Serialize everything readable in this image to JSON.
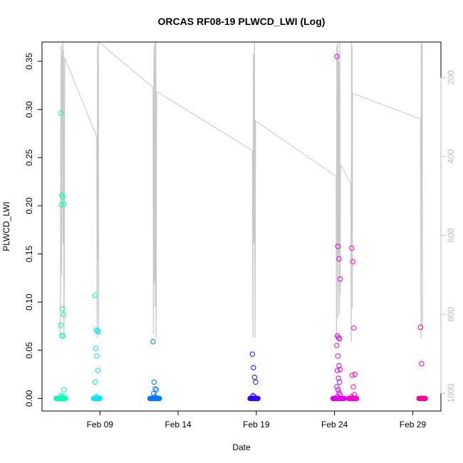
{
  "chart_data": {
    "type": "scatter",
    "title": "ORCAS RF08-19 PLWCD_LWI (Log)",
    "xlabel": "Date",
    "ylabel": "PLWCD_LWI",
    "x_unit": "day of February 2016",
    "xlim": [
      5.3,
      30.8
    ],
    "ylim": [
      -0.013,
      0.37
    ],
    "x_ticks": [
      {
        "value": 9,
        "label": "Feb 09"
      },
      {
        "value": 14,
        "label": "Feb 14"
      },
      {
        "value": 19,
        "label": "Feb 19"
      },
      {
        "value": 24,
        "label": "Feb 24"
      },
      {
        "value": 29,
        "label": "Feb 29"
      }
    ],
    "y_ticks": [
      {
        "value": 0.0,
        "label": "0.00"
      },
      {
        "value": 0.05,
        "label": "0.05"
      },
      {
        "value": 0.1,
        "label": "0.10"
      },
      {
        "value": 0.15,
        "label": "0.15"
      },
      {
        "value": 0.2,
        "label": "0.20"
      },
      {
        "value": 0.25,
        "label": "0.25"
      },
      {
        "value": 0.3,
        "label": "0.30"
      },
      {
        "value": 0.35,
        "label": "0.35"
      }
    ],
    "right_axis": {
      "ylim": [
        1045,
        110
      ],
      "ticks": [
        {
          "value": 200,
          "label": "200"
        },
        {
          "value": 400,
          "label": "400"
        },
        {
          "value": 600,
          "label": "600"
        },
        {
          "value": 800,
          "label": "800"
        },
        {
          "value": 1000,
          "label": "1000"
        }
      ],
      "color": "#bbbbbb"
    },
    "grid": false,
    "legend": "none",
    "pressure_trace": {
      "color": "#c8c8c8",
      "flights": [
        {
          "x0": 6.45,
          "x1": 6.75,
          "seq": [
            835,
            850,
            300,
            120,
            700,
            145,
            250,
            100,
            620,
            130,
            860,
            690,
            150
          ]
        },
        {
          "x0": 8.8,
          "x1": 8.92,
          "seq": [
            350,
            860,
            120,
            660,
            100,
            845
          ]
        },
        {
          "x0": 12.4,
          "x1": 12.62,
          "seq": [
            225,
            850,
            120,
            720,
            690,
            100,
            780,
            105,
            860,
            235
          ]
        },
        {
          "x0": 18.75,
          "x1": 18.95,
          "seq": [
            385,
            860,
            140,
            620,
            100,
            860,
            310
          ]
        },
        {
          "x0": 24.1,
          "x1": 24.38,
          "seq": [
            450,
            860,
            120,
            670,
            100,
            810,
            140,
            650,
            160,
            800,
            110,
            750,
            420
          ]
        },
        {
          "x0": 25.05,
          "x1": 25.15,
          "seq": [
            470,
            870,
            110,
            210,
            120,
            785,
            240
          ]
        },
        {
          "x0": 29.5,
          "x1": 29.62,
          "seq": [
            305,
            860,
            110,
            450,
            115,
            840
          ]
        }
      ],
      "ferry_lines": [
        [
          6.75,
          150,
          8.8,
          350
        ],
        [
          8.92,
          110,
          12.4,
          225
        ],
        [
          12.62,
          235,
          18.75,
          385
        ],
        [
          18.95,
          310,
          24.1,
          450
        ],
        [
          24.38,
          420,
          25.05,
          470
        ],
        [
          25.15,
          240,
          29.5,
          305
        ]
      ]
    },
    "series": [
      {
        "color": "#00ffbb",
        "x": 6.6,
        "y_zero_range": [
          6.2,
          6.8
        ],
        "y": [
          0.296,
          0.211,
          0.209,
          0.202,
          0.201,
          0.093,
          0.087,
          0.076,
          0.065,
          0.065,
          0.009,
          0.003,
          0.002,
          0.001
        ]
      },
      {
        "color": "#00e8ff",
        "x": 8.8,
        "y_zero_range": [
          8.6,
          9.0
        ],
        "y": [
          0.107,
          0.071,
          0.07,
          0.069,
          0.052,
          0.044,
          0.029,
          0.017,
          0.002,
          0.001
        ]
      },
      {
        "color": "#0077ff",
        "x": 12.5,
        "y_zero_range": [
          12.2,
          12.8
        ],
        "y": [
          0.059,
          0.017,
          0.01,
          0.009,
          0.005,
          0.002,
          0.001
        ]
      },
      {
        "color": "#3300ff",
        "x": 18.85,
        "y_zero_range": [
          18.6,
          19.1
        ],
        "y": [
          0.046,
          0.032,
          0.022,
          0.017,
          0.003,
          0.002
        ]
      },
      {
        "color": "#dd00ee",
        "x": 24.25,
        "y_zero_range": [
          23.9,
          24.6
        ],
        "y": [
          0.355,
          0.158,
          0.145,
          0.124,
          0.065,
          0.063,
          0.062,
          0.055,
          0.044,
          0.034,
          0.03,
          0.029,
          0.021,
          0.017,
          0.012,
          0.009,
          0.006,
          0.004,
          0.002
        ]
      },
      {
        "color": "#ff00cc",
        "x": 25.2,
        "y_zero_range": [
          24.9,
          25.4
        ],
        "y": [
          0.156,
          0.142,
          0.073,
          0.025,
          0.024,
          0.012,
          0.004,
          0.002
        ]
      },
      {
        "color": "#ff0099",
        "x": 29.6,
        "y_zero_range": [
          29.4,
          29.8
        ],
        "y": [
          0.074,
          0.036
        ]
      }
    ]
  }
}
